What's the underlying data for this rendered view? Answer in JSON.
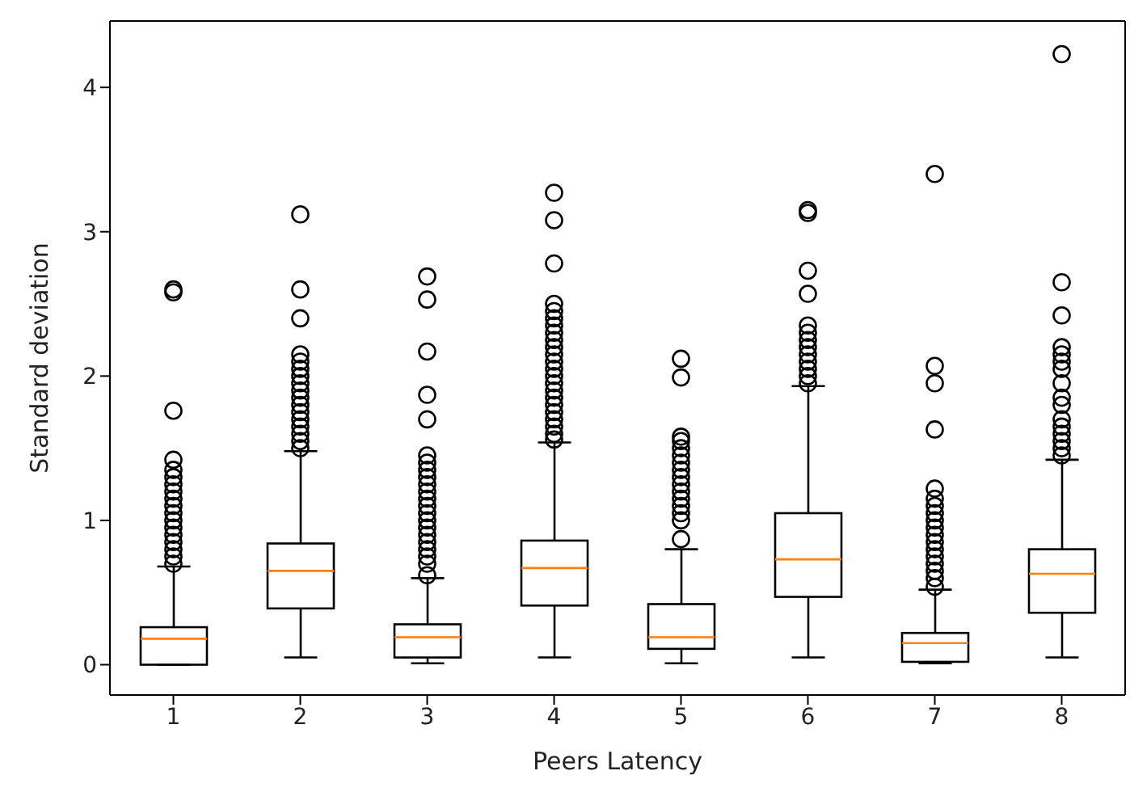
{
  "chart_data": {
    "type": "box",
    "xlabel": "Peers Latency",
    "ylabel": "Standard deviation",
    "categories": [
      "1",
      "2",
      "3",
      "4",
      "5",
      "6",
      "7",
      "8"
    ],
    "boxes": [
      {
        "low": 0.0,
        "q1": 0.0,
        "median": 0.18,
        "q3": 0.26,
        "high": 0.68,
        "outliers": [
          0.7,
          0.75,
          0.8,
          0.85,
          0.9,
          0.95,
          1.0,
          1.05,
          1.1,
          1.15,
          1.2,
          1.25,
          1.3,
          1.35,
          1.42,
          1.76,
          2.58,
          2.6
        ]
      },
      {
        "low": 0.05,
        "q1": 0.39,
        "median": 0.65,
        "q3": 0.84,
        "high": 1.48,
        "outliers": [
          1.5,
          1.55,
          1.6,
          1.65,
          1.7,
          1.75,
          1.8,
          1.85,
          1.9,
          1.95,
          2.0,
          2.05,
          2.1,
          2.15,
          2.4,
          2.6,
          3.12
        ]
      },
      {
        "low": 0.01,
        "q1": 0.05,
        "median": 0.19,
        "q3": 0.28,
        "high": 0.6,
        "outliers": [
          0.62,
          0.7,
          0.75,
          0.8,
          0.85,
          0.9,
          0.95,
          1.0,
          1.05,
          1.1,
          1.15,
          1.2,
          1.25,
          1.3,
          1.35,
          1.4,
          1.45,
          1.7,
          1.87,
          2.17,
          2.53,
          2.69
        ]
      },
      {
        "low": 0.05,
        "q1": 0.41,
        "median": 0.67,
        "q3": 0.86,
        "high": 1.54,
        "outliers": [
          1.56,
          1.6,
          1.65,
          1.7,
          1.75,
          1.8,
          1.85,
          1.9,
          1.95,
          2.0,
          2.05,
          2.1,
          2.15,
          2.2,
          2.25,
          2.3,
          2.35,
          2.4,
          2.45,
          2.5,
          2.78,
          3.08,
          3.27
        ]
      },
      {
        "low": 0.01,
        "q1": 0.11,
        "median": 0.19,
        "q3": 0.42,
        "high": 0.8,
        "outliers": [
          0.87,
          1.0,
          1.05,
          1.1,
          1.15,
          1.2,
          1.25,
          1.3,
          1.35,
          1.4,
          1.45,
          1.5,
          1.55,
          1.58,
          1.99,
          2.12
        ]
      },
      {
        "low": 0.05,
        "q1": 0.47,
        "median": 0.73,
        "q3": 1.05,
        "high": 1.93,
        "outliers": [
          1.95,
          2.0,
          2.05,
          2.1,
          2.15,
          2.2,
          2.25,
          2.3,
          2.35,
          2.57,
          2.73,
          3.13,
          3.15
        ]
      },
      {
        "low": 0.01,
        "q1": 0.02,
        "median": 0.15,
        "q3": 0.22,
        "high": 0.52,
        "outliers": [
          0.54,
          0.6,
          0.65,
          0.7,
          0.75,
          0.8,
          0.85,
          0.9,
          0.95,
          1.0,
          1.05,
          1.1,
          1.15,
          1.22,
          1.63,
          1.95,
          2.07,
          3.4
        ]
      },
      {
        "low": 0.05,
        "q1": 0.36,
        "median": 0.63,
        "q3": 0.8,
        "high": 1.42,
        "outliers": [
          1.45,
          1.5,
          1.55,
          1.6,
          1.65,
          1.7,
          1.8,
          1.85,
          1.95,
          2.05,
          2.1,
          2.15,
          2.2,
          2.42,
          2.65,
          4.23
        ]
      }
    ],
    "ylim": [
      -0.21,
      4.46
    ],
    "yticks": [
      0,
      1,
      2,
      3,
      4
    ]
  }
}
